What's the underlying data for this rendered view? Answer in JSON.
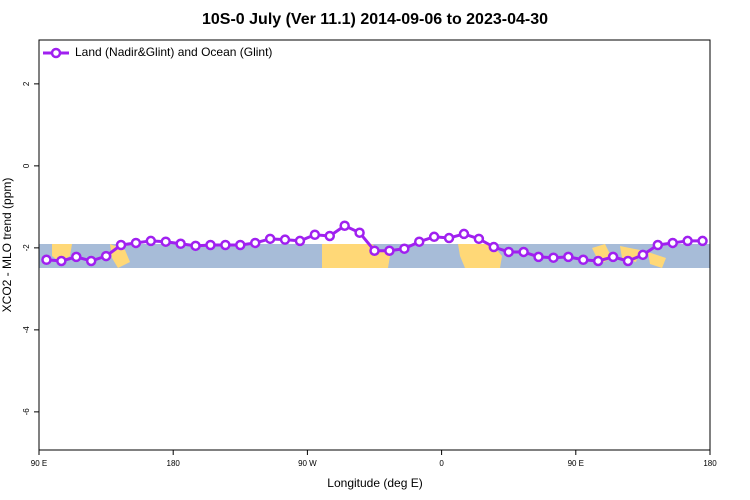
{
  "chart_data": {
    "type": "line",
    "title": "10S-0 July (Ver 11.1)   2014-09-06 to 2023-04-30",
    "xlabel": "Longitude (deg E)",
    "ylabel": "XCO2 - MLO trend (ppm)",
    "x": [
      95,
      105,
      115,
      125,
      135,
      145,
      155,
      165,
      175,
      185,
      195,
      205,
      215,
      225,
      235,
      245,
      255,
      265,
      275,
      285,
      295,
      305,
      315,
      325,
      335,
      345,
      355,
      365,
      375,
      385,
      395,
      405,
      415,
      425,
      435,
      445,
      455,
      465,
      475,
      485,
      495,
      505,
      515,
      525,
      535
    ],
    "series": [
      {
        "name": "Land (Nadir&Glint) and Ocean (Glint)",
        "color": "#a020f0",
        "values": [
          -2.29,
          -2.32,
          -2.22,
          -2.32,
          -2.2,
          -1.93,
          -1.88,
          -1.83,
          -1.85,
          -1.9,
          -1.95,
          -1.93,
          -1.93,
          -1.93,
          -1.88,
          -1.78,
          -1.8,
          -1.83,
          -1.68,
          -1.71,
          -1.46,
          -1.63,
          -2.07,
          -2.07,
          -2.02,
          -1.85,
          -1.73,
          -1.76,
          -1.66,
          -1.78,
          -1.98,
          -2.1,
          -2.1,
          -2.22,
          -2.24,
          -2.22,
          -2.29,
          -2.32,
          -2.22,
          -2.32,
          -2.17,
          -1.93,
          -1.88,
          -1.83,
          -1.83
        ]
      }
    ],
    "xlim": [
      90,
      540
    ],
    "xticks": [
      {
        "value": 90,
        "label": "90 E"
      },
      180,
      {
        "value": 270,
        "label": "90 W"
      },
      {
        "value": 360,
        "label": "0"
      },
      {
        "value": 450,
        "label": "90 E"
      },
      {
        "value": 540,
        "label": "180"
      }
    ],
    "ylim": [
      -6.93,
      3.07
    ],
    "yticks": [
      -6,
      -4,
      -2,
      0,
      2
    ],
    "legend": "upper left"
  }
}
